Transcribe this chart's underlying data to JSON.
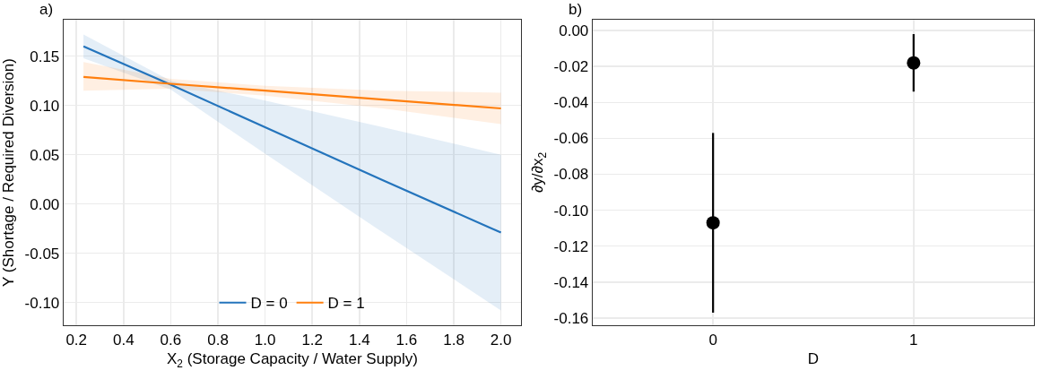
{
  "chart_data": [
    {
      "type": "line",
      "xlabel": "X$_{2}$ (Storage Capacity / Water Supply)",
      "ylabel": "Y (Shortage / Required Diversion)",
      "annotations": [
        "a)"
      ],
      "x": [
        0.23,
        0.6,
        1.0,
        1.5,
        2.0
      ],
      "series": [
        {
          "name": "D = 0",
          "color": "#2474bc",
          "values": [
            0.16,
            0.121,
            0.078,
            0.024,
            -0.029
          ],
          "lower": [
            0.148,
            0.116,
            0.051,
            -0.029,
            -0.108
          ],
          "upper": [
            0.172,
            0.125,
            0.105,
            0.078,
            0.05
          ]
        },
        {
          "name": "D = 1",
          "color": "#ff7f0e",
          "values": [
            0.129,
            0.122,
            0.115,
            0.106,
            0.097
          ],
          "lower": [
            0.115,
            0.117,
            0.11,
            0.097,
            0.081
          ],
          "upper": [
            0.144,
            0.127,
            0.12,
            0.115,
            0.113
          ]
        }
      ],
      "xlim": [
        0.146,
        2.085
      ],
      "xticks": [
        0.2,
        0.4,
        0.6,
        0.8,
        {
          "value": 1,
          "label": "1.0"
        },
        1.2,
        1.4,
        1.6,
        1.8,
        {
          "value": 2,
          "label": "2.0"
        }
      ],
      "ylim": [
        -0.123,
        0.187
      ],
      "yticks": [
        {
          "value": -0.1,
          "label": "-0.10"
        },
        -0.05,
        {
          "value": 0,
          "label": "0.00"
        },
        0.05,
        {
          "value": 0.1,
          "label": "0.10"
        },
        0.15
      ],
      "grid": true,
      "legend": "bottom",
      "marker": "none",
      "line_style": "solid"
    },
    {
      "type": "scatter",
      "xlabel": "D",
      "ylabel": "∂y/∂x$_{2}$",
      "annotations": [
        "b)"
      ],
      "categories": [
        "0",
        "1"
      ],
      "values": [
        -0.107,
        -0.018
      ],
      "errors": [
        [
          -0.157,
          -0.057
        ],
        [
          -0.034,
          -0.002
        ]
      ],
      "color": "#000000",
      "ylim": [
        -0.164,
        0.006
      ],
      "yticks": [
        -0.16,
        -0.14,
        -0.12,
        {
          "value": -0.1,
          "label": "-0.10"
        },
        -0.08,
        -0.06,
        -0.04,
        -0.02,
        {
          "value": 0,
          "label": "0.00"
        }
      ],
      "grid": true,
      "legend": false,
      "marker": "circle"
    }
  ]
}
